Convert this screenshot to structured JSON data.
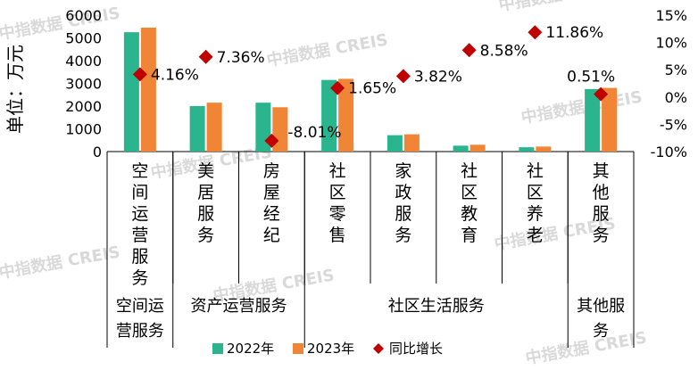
{
  "chart_data": {
    "type": "bar",
    "categories": [
      "空间运营服务",
      "美居服务",
      "房屋经纪",
      "社区零售",
      "家政服务",
      "社区教育",
      "社区养老",
      "其他服务"
    ],
    "groups": [
      {
        "label": "空间运营服务",
        "start": 0,
        "end": 0
      },
      {
        "label": "资产运营服务",
        "start": 1,
        "end": 2
      },
      {
        "label": "社区生活服务",
        "start": 3,
        "end": 6
      },
      {
        "label": "其他服务",
        "start": 7,
        "end": 7
      }
    ],
    "series": [
      {
        "name": "2022年",
        "color": "#2bb58f",
        "values": [
          5250,
          2000,
          2150,
          3150,
          720,
          260,
          190,
          2750
        ]
      },
      {
        "name": "2023年",
        "color": "#ef8535",
        "values": [
          5450,
          2150,
          1950,
          3200,
          760,
          300,
          220,
          2800
        ]
      }
    ],
    "growth": {
      "name": "同比增长",
      "color": "#c00000",
      "values": [
        4.16,
        7.36,
        -8.01,
        1.65,
        3.82,
        8.58,
        11.86,
        0.51
      ],
      "labels": [
        "4.16%",
        "7.36%",
        "-8.01%",
        "1.65%",
        "3.82%",
        "8.58%",
        "11.86%",
        "0.51%"
      ]
    },
    "ylabel": "单位：万元",
    "ylim": [
      0,
      6000
    ],
    "yticks": [
      "0",
      "1000",
      "2000",
      "3000",
      "4000",
      "5000",
      "6000"
    ],
    "y2lim": [
      -10,
      15
    ],
    "y2ticks": [
      "-10%",
      "-5%",
      "0%",
      "5%",
      "10%",
      "15%"
    ],
    "legend_position": "bottom",
    "watermark": "中指数据 CREIS"
  }
}
